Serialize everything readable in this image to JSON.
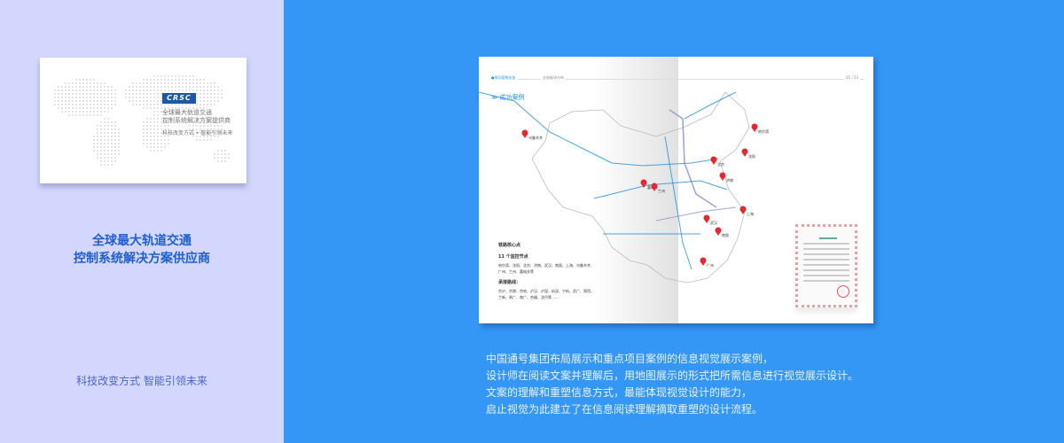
{
  "left": {
    "card": {
      "logo": "CRSC",
      "title_line1": "全球最大轨道交通",
      "title_line2": "控制系统解决方案提供商",
      "slogan": "科技改变方式 • 智能引领未来"
    },
    "title_line1": "全球最大轨道交通",
    "title_line2": "控制系统解决方案供应商",
    "slogan": "科技改变方式 智能引领未来"
  },
  "book": {
    "header_left": "●成功案例业务",
    "header_mid": "业务板块分布",
    "header_right": "25 / 53",
    "section_title": "≫ 成功案例",
    "side_title": "铁路核心点",
    "side_sub1": "11 个监控节点",
    "side_text1": "哈尔滨、沈阳、北京、济南、武汉、南昌、上海、乌鲁木齐、广州、兰州、嘉峪关等",
    "side_sub2": "承接路线：",
    "side_text2": "京沪、京港、京哈、沪汉、沪昆、杭深、宁杭、武广、郑西、兰新、贵广、南广、合福、沈丹等……",
    "cities": [
      "乌鲁木齐",
      "嘉峪关",
      "兰州",
      "北京",
      "济南",
      "沈阳",
      "哈尔滨",
      "上海",
      "武汉",
      "南昌",
      "广州"
    ],
    "pin_color": "#e8262d",
    "line_color": "#1d8fd6"
  },
  "description": [
    "中国通号集团布局展示和重点项目案例的信息视觉展示案例，",
    "设计师在阅读文案并理解后，用地图展示的形式把所需信息进行视觉展示设计。",
    "文案的理解和重塑信息方式，最能体现视觉设计的能力，",
    "启止视觉为此建立了在信息阅读理解摘取重塑的设计流程。"
  ]
}
